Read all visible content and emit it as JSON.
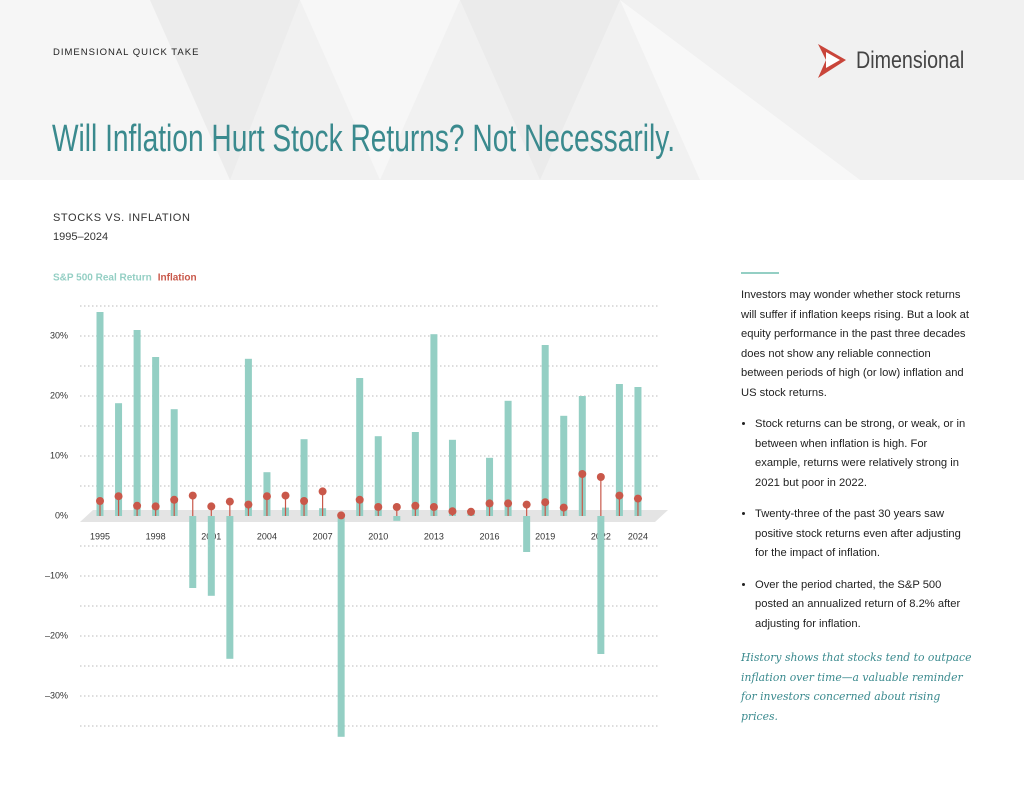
{
  "header": {
    "kicker": "DIMENSIONAL QUICK TAKE",
    "logo": "Dimensional",
    "title": "Will Inflation Hurt Stock Returns? Not Necessarily."
  },
  "chart_data": {
    "type": "bar",
    "title": "STOCKS VS. INFLATION",
    "subtitle": "1995–2024",
    "categories": [
      "1995",
      null,
      null,
      "1998",
      null,
      null,
      "2001",
      null,
      null,
      "2004",
      null,
      null,
      "2007",
      null,
      null,
      "2010",
      null,
      null,
      "2013",
      null,
      null,
      "2016",
      null,
      null,
      "2019",
      null,
      null,
      "2022",
      null,
      "2024"
    ],
    "series": [
      {
        "name": "S&P 500 Real Return",
        "type": "bar",
        "color": "#94cfc4",
        "values": [
          34.0,
          18.8,
          31.0,
          26.5,
          17.8,
          -12.0,
          -13.3,
          -23.8,
          26.2,
          7.3,
          1.4,
          12.8,
          1.3,
          -36.8,
          23.0,
          13.3,
          -0.8,
          14.0,
          30.3,
          12.7,
          0.7,
          9.7,
          19.2,
          -6.0,
          28.5,
          16.7,
          20.0,
          -23.0,
          22.0,
          21.5
        ]
      },
      {
        "name": "Inflation",
        "type": "lollipop",
        "color": "#c9584a",
        "values": [
          2.5,
          3.3,
          1.7,
          1.6,
          2.7,
          3.4,
          1.6,
          2.4,
          1.9,
          3.3,
          3.4,
          2.5,
          4.1,
          0.1,
          2.7,
          1.5,
          1.5,
          1.7,
          1.5,
          0.8,
          0.7,
          2.1,
          2.1,
          1.9,
          2.3,
          1.4,
          7.0,
          6.5,
          3.4,
          2.9
        ]
      }
    ],
    "ylim": [
      -37,
      36
    ],
    "yticks": [
      {
        "value": -30,
        "label": "–30%"
      },
      {
        "value": -20,
        "label": "–20%"
      },
      {
        "value": -10,
        "label": "–10%"
      },
      {
        "value": 0,
        "label": "0%"
      },
      {
        "value": 10,
        "label": "10%"
      },
      {
        "value": 20,
        "label": "20%"
      },
      {
        "value": 30,
        "label": "30%"
      }
    ],
    "minor_yticks": [
      -35,
      -25,
      -15,
      -5,
      5,
      15,
      25,
      35
    ],
    "grid": true
  },
  "sidebar": {
    "intro": "Investors may wonder whether stock returns will suffer if inflation keeps rising. But a look at equity performance in the past three decades does not show any reliable connection between periods of high (or low) inflation and US stock returns.",
    "bullets": [
      "Stock returns can be strong, or weak, or in between when inflation is high. For example, returns were relatively strong in 2021 but poor in 2022.",
      "Twenty-three of the past 30 years saw positive stock returns even after adjusting for the impact of inflation.",
      "Over the period charted, the S&P 500 posted an annualized return of 8.2% after adjusting for inflation."
    ],
    "closing": "History shows that stocks tend to outpace inflation over time—a valuable reminder for investors concerned about rising prices."
  }
}
